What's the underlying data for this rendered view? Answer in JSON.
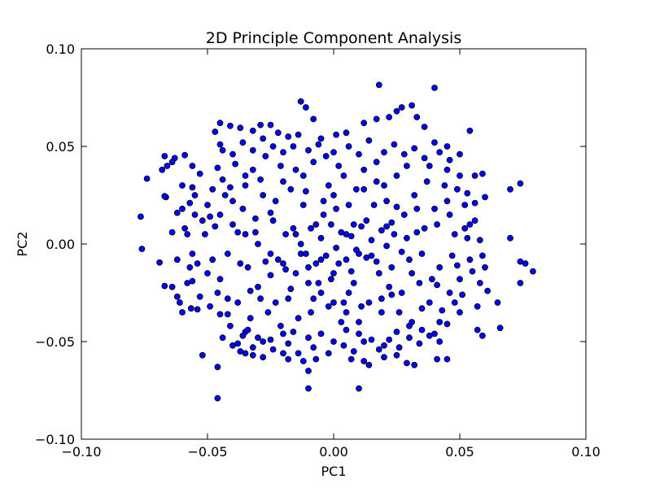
{
  "chart_data": {
    "type": "scatter",
    "title": "2D Principle Component Analysis",
    "xlabel": "PC1",
    "ylabel": "PC2",
    "xlim": [
      -0.1,
      0.1
    ],
    "ylim": [
      -0.1,
      0.1
    ],
    "x_ticks": [
      -0.1,
      -0.05,
      0.0,
      0.05,
      0.1
    ],
    "y_ticks": [
      -0.1,
      -0.05,
      0.0,
      0.05,
      0.1
    ],
    "x_tick_labels": [
      "−0.10",
      "−0.05",
      "0.00",
      "0.05",
      "0.10"
    ],
    "y_tick_labels": [
      "−0.10",
      "−0.05",
      "0.00",
      "0.05",
      "0.10"
    ],
    "grid": false,
    "marker_color": "#0000ff",
    "marker_edge": "#000000",
    "points": [
      [
        -0.0765,
        0.014
      ],
      [
        -0.076,
        -0.0025
      ],
      [
        -0.074,
        0.0335
      ],
      [
        -0.068,
        0.038
      ],
      [
        -0.067,
        0.045
      ],
      [
        -0.066,
        0.04
      ],
      [
        -0.064,
        0.042
      ],
      [
        -0.063,
        0.044
      ],
      [
        -0.059,
        0.0455
      ],
      [
        -0.056,
        0.04
      ],
      [
        -0.0665,
        0.024
      ],
      [
        -0.067,
        0.0245
      ],
      [
        -0.069,
        -0.0095
      ],
      [
        -0.067,
        -0.0215
      ],
      [
        -0.064,
        -0.022
      ],
      [
        -0.062,
        -0.027
      ],
      [
        -0.06,
        -0.035
      ],
      [
        -0.0565,
        -0.033
      ],
      [
        -0.056,
        -0.019
      ],
      [
        -0.054,
        -0.0335
      ],
      [
        -0.052,
        -0.057
      ],
      [
        -0.046,
        -0.079
      ],
      [
        -0.046,
        -0.063
      ],
      [
        -0.042,
        -0.036
      ],
      [
        -0.045,
        0.062
      ],
      [
        -0.041,
        0.0605
      ],
      [
        -0.037,
        0.0595
      ],
      [
        -0.047,
        0.0575
      ],
      [
        -0.045,
        0.051
      ],
      [
        -0.032,
        0.058
      ],
      [
        -0.029,
        0.061
      ],
      [
        -0.025,
        0.061
      ],
      [
        -0.022,
        0.057
      ],
      [
        -0.024,
        0.05
      ],
      [
        -0.018,
        0.055
      ],
      [
        -0.014,
        0.056
      ],
      [
        -0.008,
        0.064
      ],
      [
        -0.013,
        0.073
      ],
      [
        -0.011,
        0.07
      ],
      [
        -0.005,
        0.054
      ],
      [
        0.001,
        0.056
      ],
      [
        0.005,
        0.057
      ],
      [
        0.012,
        0.062
      ],
      [
        0.017,
        0.064
      ],
      [
        0.022,
        0.065
      ],
      [
        0.025,
        0.068
      ],
      [
        0.027,
        0.07
      ],
      [
        0.031,
        0.071
      ],
      [
        0.033,
        0.065
      ],
      [
        0.036,
        0.06
      ],
      [
        0.04,
        0.08
      ],
      [
        0.018,
        0.0815
      ],
      [
        0.04,
        0.052
      ],
      [
        0.045,
        0.05
      ],
      [
        0.05,
        0.046
      ],
      [
        0.054,
        0.058
      ],
      [
        0.056,
        0.035
      ],
      [
        0.059,
        0.036
      ],
      [
        0.06,
        0.024
      ],
      [
        0.056,
        0.021
      ],
      [
        0.054,
        0.01
      ],
      [
        0.058,
        0.002
      ],
      [
        0.059,
        -0.006
      ],
      [
        0.06,
        -0.012
      ],
      [
        0.061,
        -0.024
      ],
      [
        0.065,
        -0.03
      ],
      [
        0.066,
        -0.043
      ],
      [
        0.059,
        -0.047
      ],
      [
        0.057,
        -0.044
      ],
      [
        0.07,
        0.028
      ],
      [
        0.074,
        0.031
      ],
      [
        0.07,
        0.003
      ],
      [
        0.074,
        -0.009
      ],
      [
        0.076,
        -0.01
      ],
      [
        0.079,
        -0.014
      ],
      [
        0.074,
        -0.02
      ],
      [
        0.041,
        -0.059
      ],
      [
        0.045,
        -0.059
      ],
      [
        0.032,
        -0.062
      ],
      [
        0.029,
        -0.061
      ],
      [
        0.025,
        -0.057
      ],
      [
        0.02,
        -0.058
      ],
      [
        0.014,
        -0.062
      ],
      [
        0.012,
        -0.06
      ],
      [
        0.007,
        -0.059
      ],
      [
        0.01,
        -0.074
      ],
      [
        -0.01,
        -0.074
      ],
      [
        -0.01,
        -0.065
      ],
      [
        -0.007,
        -0.059
      ],
      [
        -0.012,
        -0.06
      ],
      [
        -0.018,
        -0.059
      ],
      [
        -0.02,
        -0.056
      ],
      [
        -0.028,
        -0.058
      ],
      [
        -0.032,
        -0.057
      ],
      [
        -0.035,
        -0.056
      ],
      [
        -0.037,
        -0.055
      ],
      [
        -0.038,
        -0.051
      ],
      [
        -0.035,
        -0.045
      ],
      [
        -0.03,
        -0.048
      ],
      [
        -0.025,
        -0.049
      ],
      [
        -0.02,
        -0.046
      ],
      [
        -0.016,
        -0.045
      ],
      [
        -0.01,
        -0.048
      ],
      [
        -0.005,
        -0.046
      ],
      [
        0.0,
        -0.05
      ],
      [
        0.005,
        -0.044
      ],
      [
        0.01,
        -0.046
      ],
      [
        0.015,
        -0.049
      ],
      [
        0.02,
        -0.052
      ],
      [
        0.025,
        -0.045
      ],
      [
        0.03,
        -0.042
      ],
      [
        0.035,
        -0.044
      ],
      [
        0.04,
        -0.046
      ],
      [
        0.045,
        -0.041
      ],
      [
        0.05,
        -0.035
      ],
      [
        -0.06,
        0.03
      ],
      [
        -0.055,
        0.025
      ],
      [
        -0.05,
        0.02
      ],
      [
        -0.045,
        0.015
      ],
      [
        -0.04,
        0.01
      ],
      [
        -0.035,
        0.005
      ],
      [
        -0.03,
        0.0
      ],
      [
        -0.025,
        -0.005
      ],
      [
        -0.02,
        -0.01
      ],
      [
        -0.015,
        -0.015
      ],
      [
        -0.01,
        -0.02
      ],
      [
        -0.005,
        -0.025
      ],
      [
        0.0,
        -0.03
      ],
      [
        0.005,
        -0.035
      ],
      [
        0.01,
        -0.04
      ],
      [
        -0.058,
        0.005
      ],
      [
        -0.056,
        -0.005
      ],
      [
        -0.054,
        -0.01
      ],
      [
        -0.052,
        0.012
      ],
      [
        -0.05,
        -0.015
      ],
      [
        -0.048,
        0.028
      ],
      [
        -0.046,
        -0.025
      ],
      [
        -0.044,
        0.033
      ],
      [
        -0.042,
        -0.005
      ],
      [
        -0.04,
        0.022
      ],
      [
        -0.038,
        -0.03
      ],
      [
        -0.036,
        0.018
      ],
      [
        -0.034,
        -0.012
      ],
      [
        -0.032,
        0.038
      ],
      [
        -0.03,
        -0.022
      ],
      [
        -0.028,
        0.025
      ],
      [
        -0.026,
        -0.035
      ],
      [
        -0.024,
        0.012
      ],
      [
        -0.022,
        -0.008
      ],
      [
        -0.02,
        0.032
      ],
      [
        -0.018,
        -0.028
      ],
      [
        -0.016,
        0.008
      ],
      [
        -0.014,
        -0.038
      ],
      [
        -0.012,
        0.02
      ],
      [
        -0.01,
        -0.012
      ],
      [
        -0.008,
        0.042
      ],
      [
        -0.006,
        -0.02
      ],
      [
        -0.004,
        0.015
      ],
      [
        -0.002,
        -0.032
      ],
      [
        0.0,
        0.025
      ],
      [
        0.002,
        -0.01
      ],
      [
        0.004,
        0.035
      ],
      [
        0.006,
        -0.025
      ],
      [
        0.008,
        0.01
      ],
      [
        0.01,
        -0.005
      ],
      [
        0.012,
        0.038
      ],
      [
        0.014,
        -0.03
      ],
      [
        0.016,
        0.02
      ],
      [
        0.018,
        -0.015
      ],
      [
        0.02,
        0.03
      ],
      [
        0.022,
        -0.022
      ],
      [
        0.024,
        0.005
      ],
      [
        0.026,
        -0.035
      ],
      [
        0.028,
        0.015
      ],
      [
        0.03,
        -0.008
      ],
      [
        0.032,
        0.025
      ],
      [
        0.034,
        -0.02
      ],
      [
        0.036,
        0.008
      ],
      [
        0.038,
        -0.03
      ],
      [
        0.04,
        0.018
      ],
      [
        0.042,
        -0.012
      ],
      [
        0.044,
        0.03
      ],
      [
        0.046,
        -0.025
      ],
      [
        0.048,
        0.005
      ],
      [
        0.05,
        -0.018
      ],
      [
        0.052,
        0.02
      ],
      [
        0.054,
        -0.008
      ],
      [
        0.056,
        0.012
      ],
      [
        0.058,
        -0.02
      ],
      [
        0.05,
        0.035
      ],
      [
        -0.053,
        0.036
      ],
      [
        -0.051,
        0.005
      ],
      [
        -0.049,
        -0.032
      ],
      [
        -0.047,
        0.009
      ],
      [
        -0.045,
        -0.018
      ],
      [
        -0.043,
        0.025
      ],
      [
        -0.041,
        -0.042
      ],
      [
        -0.039,
        0.041
      ],
      [
        -0.037,
        -0.01
      ],
      [
        -0.035,
        0.03
      ],
      [
        -0.033,
        -0.038
      ],
      [
        -0.031,
        0.013
      ],
      [
        -0.029,
        -0.028
      ],
      [
        -0.027,
        0.045
      ],
      [
        -0.025,
        -0.016
      ],
      [
        -0.023,
        0.022
      ],
      [
        -0.021,
        -0.042
      ],
      [
        -0.019,
        0.005
      ],
      [
        -0.017,
        -0.023
      ],
      [
        -0.015,
        0.038
      ],
      [
        -0.013,
        -0.005
      ],
      [
        -0.011,
        0.027
      ],
      [
        -0.009,
        -0.035
      ],
      [
        -0.007,
        0.01
      ],
      [
        -0.005,
        -0.008
      ],
      [
        -0.003,
        0.045
      ],
      [
        -0.001,
        -0.018
      ],
      [
        0.001,
        0.018
      ],
      [
        0.003,
        -0.04
      ],
      [
        0.005,
        0.005
      ],
      [
        0.007,
        -0.014
      ],
      [
        0.009,
        0.028
      ],
      [
        0.011,
        -0.032
      ],
      [
        0.013,
        0.012
      ],
      [
        0.015,
        -0.006
      ],
      [
        0.017,
        0.042
      ],
      [
        0.019,
        -0.028
      ],
      [
        0.021,
        0.022
      ],
      [
        0.023,
        -0.012
      ],
      [
        0.025,
        0.035
      ],
      [
        0.027,
        -0.025
      ],
      [
        0.029,
        0.003
      ],
      [
        0.031,
        -0.04
      ],
      [
        0.033,
        0.018
      ],
      [
        0.035,
        -0.005
      ],
      [
        0.037,
        0.032
      ],
      [
        0.039,
        -0.018
      ],
      [
        0.041,
        0.01
      ],
      [
        0.043,
        -0.034
      ],
      [
        0.045,
        0.022
      ],
      [
        0.047,
        -0.006
      ],
      [
        0.049,
        0.028
      ],
      [
        0.051,
        -0.026
      ],
      [
        0.053,
        0.003
      ],
      [
        0.055,
        -0.014
      ],
      [
        -0.064,
        0.006
      ],
      [
        -0.062,
        -0.008
      ],
      [
        -0.06,
        0.018
      ],
      [
        -0.058,
        -0.02
      ],
      [
        -0.056,
        0.029
      ],
      [
        -0.062,
        0.016
      ],
      [
        -0.061,
        -0.03
      ],
      [
        -0.059,
        0.008
      ],
      [
        -0.057,
        -0.012
      ],
      [
        -0.055,
        0.015
      ],
      [
        -0.044,
        0.048
      ],
      [
        -0.04,
        0.046
      ],
      [
        -0.036,
        0.052
      ],
      [
        -0.032,
        0.048
      ],
      [
        -0.028,
        0.054
      ],
      [
        -0.02,
        0.047
      ],
      [
        -0.016,
        0.05
      ],
      [
        -0.01,
        0.048
      ],
      [
        -0.006,
        0.051
      ],
      [
        0.0,
        0.047
      ],
      [
        0.006,
        0.05
      ],
      [
        0.01,
        0.046
      ],
      [
        0.014,
        0.053
      ],
      [
        0.02,
        0.047
      ],
      [
        0.024,
        0.051
      ],
      [
        0.028,
        0.046
      ],
      [
        0.032,
        0.049
      ],
      [
        0.036,
        0.044
      ],
      [
        0.042,
        0.047
      ],
      [
        0.046,
        0.043
      ],
      [
        -0.044,
        -0.048
      ],
      [
        -0.04,
        -0.052
      ],
      [
        -0.036,
        -0.047
      ],
      [
        -0.032,
        -0.053
      ],
      [
        -0.028,
        -0.05
      ],
      [
        -0.024,
        -0.054
      ],
      [
        -0.018,
        -0.051
      ],
      [
        -0.014,
        -0.056
      ],
      [
        -0.008,
        -0.053
      ],
      [
        -0.002,
        -0.056
      ],
      [
        0.004,
        -0.052
      ],
      [
        0.008,
        -0.055
      ],
      [
        0.012,
        -0.05
      ],
      [
        0.018,
        -0.054
      ],
      [
        0.022,
        -0.049
      ],
      [
        0.026,
        -0.053
      ],
      [
        0.03,
        -0.048
      ],
      [
        0.034,
        -0.051
      ],
      [
        0.038,
        -0.047
      ],
      [
        0.042,
        -0.05
      ],
      [
        -0.015,
        0.005
      ],
      [
        -0.013,
        0.0
      ],
      [
        -0.011,
        -0.005
      ],
      [
        -0.009,
        0.008
      ],
      [
        -0.007,
        -0.01
      ],
      [
        -0.005,
        0.003
      ],
      [
        -0.003,
        -0.006
      ],
      [
        -0.001,
        0.01
      ],
      [
        0.001,
        -0.002
      ],
      [
        0.003,
        0.006
      ],
      [
        0.005,
        -0.008
      ],
      [
        0.007,
        0.004
      ],
      [
        0.009,
        -0.003
      ],
      [
        0.011,
        0.009
      ],
      [
        0.013,
        -0.007
      ],
      [
        0.015,
        0.002
      ],
      [
        0.017,
        -0.009
      ],
      [
        0.019,
        0.007
      ],
      [
        0.021,
        -0.001
      ],
      [
        0.023,
        0.011
      ],
      [
        -0.035,
        0.035
      ],
      [
        -0.033,
        -0.024
      ],
      [
        -0.031,
        0.006
      ],
      [
        -0.029,
        0.033
      ],
      [
        -0.027,
        -0.009
      ],
      [
        -0.025,
        0.016
      ],
      [
        -0.023,
        -0.03
      ],
      [
        -0.021,
        0.04
      ],
      [
        -0.019,
        -0.013
      ],
      [
        -0.017,
        0.028
      ],
      [
        0.017,
        0.032
      ],
      [
        0.019,
        -0.035
      ],
      [
        0.021,
        0.009
      ],
      [
        0.023,
        -0.026
      ],
      [
        0.025,
        0.019
      ],
      [
        0.027,
        -0.004
      ],
      [
        0.029,
        0.04
      ],
      [
        0.031,
        -0.015
      ],
      [
        0.033,
        0.006
      ],
      [
        0.035,
        -0.033
      ],
      [
        -0.048,
        -0.008
      ],
      [
        -0.046,
        0.039
      ],
      [
        -0.042,
        -0.028
      ],
      [
        -0.038,
        0.006
      ],
      [
        -0.034,
        -0.044
      ],
      [
        0.038,
        0.04
      ],
      [
        0.042,
        -0.04
      ],
      [
        0.046,
        0.015
      ],
      [
        0.048,
        -0.03
      ],
      [
        0.052,
        0.008
      ],
      [
        -0.057,
        0.021
      ],
      [
        -0.053,
        -0.027
      ],
      [
        -0.049,
        0.014
      ],
      [
        -0.045,
        -0.036
      ],
      [
        -0.041,
        0.029
      ],
      [
        0.057,
        -0.032
      ],
      [
        0.053,
        0.026
      ],
      [
        0.049,
        -0.011
      ],
      [
        0.045,
        0.038
      ],
      [
        0.041,
        -0.021
      ],
      [
        -0.002,
        0.03
      ],
      [
        0.0,
        -0.015
      ],
      [
        0.002,
        0.04
      ],
      [
        0.004,
        -0.03
      ],
      [
        0.006,
        0.02
      ],
      [
        -0.012,
        0.035
      ],
      [
        -0.008,
        -0.028
      ],
      [
        -0.004,
        0.022
      ],
      [
        0.008,
        -0.02
      ],
      [
        0.012,
        0.028
      ]
    ]
  }
}
